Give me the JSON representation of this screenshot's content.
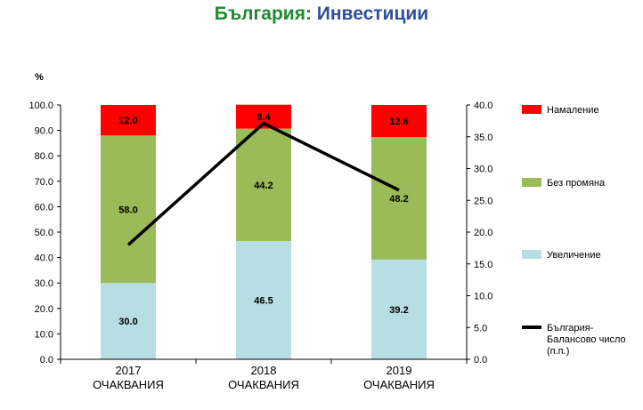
{
  "title": {
    "part1": "България:",
    "part2": "Инвестиции"
  },
  "colors": {
    "title1": "#1f8a2e",
    "title2": "#2e4f9c"
  },
  "chart_data": {
    "type": "bar",
    "stacked": true,
    "categories": [
      [
        "2017",
        "ОЧАКВАНИЯ"
      ],
      [
        "2018",
        "ОЧАКВАНИЯ"
      ],
      [
        "2019",
        "ОЧАКВАНИЯ"
      ]
    ],
    "series": [
      {
        "name": "Увеличение",
        "color": "#b7dfe3",
        "values": [
          30.0,
          46.5,
          39.2
        ]
      },
      {
        "name": "Без промяна",
        "color": "#9bbb59",
        "values": [
          58.0,
          44.2,
          48.2
        ]
      },
      {
        "name": "Намаление",
        "color": "#ff0000",
        "values": [
          12.0,
          9.4,
          12.6
        ]
      }
    ],
    "line": {
      "name": "България- Балансово число (п.п.)",
      "name_lines": [
        "България-",
        "Балансово число",
        "(п.п.)"
      ],
      "axis": "right",
      "color": "#000000",
      "values": [
        18.0,
        37.1,
        26.6
      ]
    },
    "y_left": {
      "unit_label": "%",
      "min": 0,
      "max": 100,
      "ticks": [
        "0.0",
        "10.0",
        "20.0",
        "30.0",
        "40.0",
        "50.0",
        "60.0",
        "70.0",
        "80.0",
        "90.0",
        "100.0"
      ]
    },
    "y_right": {
      "min": 0,
      "max": 40,
      "ticks": [
        "0.0",
        "5.0",
        "10.0",
        "15.0",
        "20.0",
        "25.0",
        "30.0",
        "35.0",
        "40.0"
      ]
    },
    "grid": false,
    "legend_position": "right"
  }
}
